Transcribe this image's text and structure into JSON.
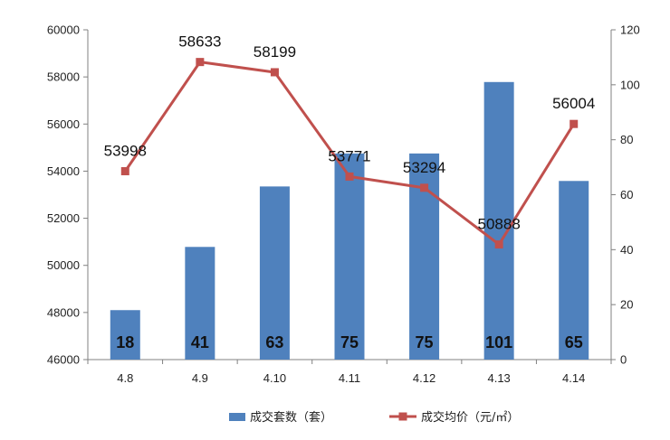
{
  "chart_data": {
    "type": "bar",
    "title": "",
    "xlabel": "",
    "ylabel": "",
    "categories": [
      "4.8",
      "4.9",
      "4.10",
      "4.11",
      "4.12",
      "4.13",
      "4.14"
    ],
    "series": [
      {
        "name": "成交套数（套）",
        "type": "bar",
        "axis": "right",
        "color": "#4f81bd",
        "values": [
          18,
          41,
          63,
          75,
          75,
          101,
          65
        ],
        "value_labels": [
          "18",
          "41",
          "63",
          "75",
          "75",
          "101",
          "65"
        ]
      },
      {
        "name": "成交均价（元/㎡）",
        "type": "line",
        "axis": "left",
        "color": "#c0504d",
        "marker": "square",
        "values": [
          53998,
          58633,
          58199,
          53771,
          53294,
          50888,
          56004
        ],
        "value_labels": [
          "53998",
          "58633",
          "58199",
          "53771",
          "53294",
          "50888",
          "56004"
        ]
      }
    ],
    "y_left": {
      "ylim": [
        46000,
        60000
      ],
      "ticks": [
        "46000",
        "48000",
        "50000",
        "52000",
        "54000",
        "56000",
        "58000",
        "60000"
      ]
    },
    "y_right": {
      "ylim": [
        0,
        120
      ],
      "ticks": [
        "0",
        "20",
        "40",
        "60",
        "80",
        "100",
        "120"
      ]
    },
    "grid": false,
    "legend_position": "bottom"
  }
}
